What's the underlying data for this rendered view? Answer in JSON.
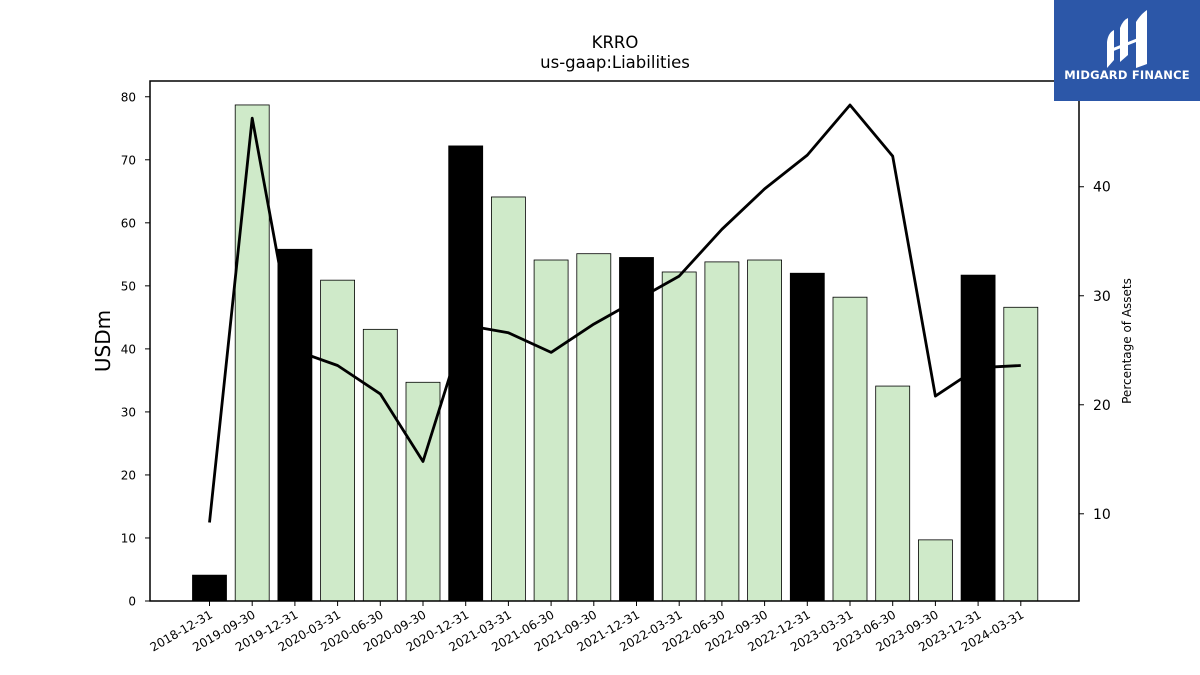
{
  "chart_data": {
    "type": "bar",
    "title": "KRRO",
    "subtitle": "us-gaap:Liabilities",
    "ylabel": "USDm",
    "y2label": "Percentage of Assets",
    "ylim": [
      0,
      82.5
    ],
    "y2lim": [
      2,
      49.7
    ],
    "yticks": [
      0,
      10,
      20,
      30,
      40,
      50,
      60,
      70,
      80
    ],
    "y2ticks": [
      10,
      20,
      30,
      40
    ],
    "categories": [
      "2018-12-31",
      "2019-09-30",
      "2019-12-31",
      "2020-03-31",
      "2020-06-30",
      "2020-09-30",
      "2020-12-31",
      "2021-03-31",
      "2021-06-30",
      "2021-09-30",
      "2021-12-31",
      "2022-03-31",
      "2022-06-30",
      "2022-09-30",
      "2022-12-31",
      "2023-03-31",
      "2023-06-30",
      "2023-09-30",
      "2023-12-31",
      "2024-03-31"
    ],
    "series": [
      {
        "type": "bar",
        "values": [
          4.1,
          78.7,
          55.8,
          50.9,
          43.1,
          34.7,
          72.2,
          64.1,
          54.1,
          55.1,
          54.5,
          52.2,
          53.8,
          54.1,
          52.0,
          48.2,
          34.1,
          9.7,
          51.7,
          46.6
        ],
        "colors": [
          "#000000",
          "#cfeac9",
          "#000000",
          "#cfeac9",
          "#cfeac9",
          "#cfeac9",
          "#000000",
          "#cfeac9",
          "#cfeac9",
          "#cfeac9",
          "#000000",
          "#cfeac9",
          "#cfeac9",
          "#cfeac9",
          "#000000",
          "#cfeac9",
          "#cfeac9",
          "#cfeac9",
          "#000000",
          "#cfeac9"
        ]
      },
      {
        "type": "line",
        "axis": "right",
        "color": "#000000",
        "values": [
          9.2,
          46.3,
          25.0,
          23.6,
          21.0,
          14.8,
          27.3,
          26.6,
          24.8,
          27.4,
          29.6,
          31.8,
          36.1,
          39.8,
          42.9,
          47.5,
          42.8,
          20.8,
          23.4,
          23.6
        ]
      }
    ],
    "grid": false,
    "legend": "none"
  },
  "logo": {
    "text": "MIDGARD FINANCE",
    "background": "#2c57a8"
  }
}
